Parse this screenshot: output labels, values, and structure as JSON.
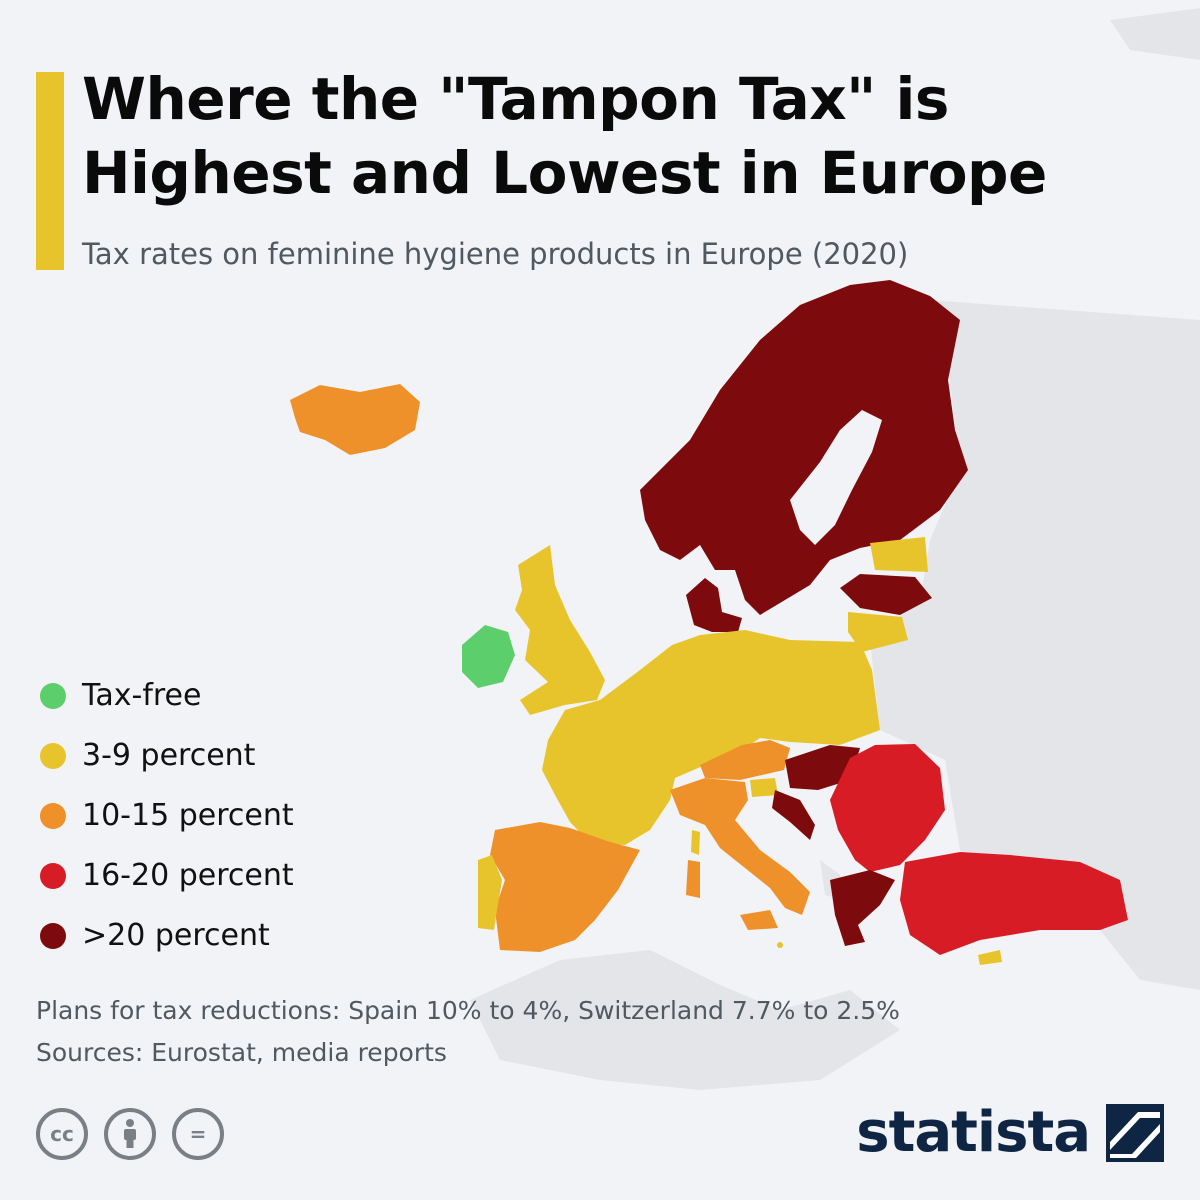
{
  "header": {
    "title_line1": "Where the \"Tampon Tax\" is",
    "title_line2": "Highest and Lowest in Europe",
    "subtitle": "Tax rates on feminine hygiene products in Europe (2020)"
  },
  "colors": {
    "accent": "#e8c42c",
    "tax_free": "#5ccf6c",
    "pct_3_9": "#e8c42c",
    "pct_10_15": "#ee912a",
    "pct_16_20": "#d71c25",
    "pct_over_20": "#7d0a0c",
    "non_data_land": "#e4e5e9",
    "sea": "#f2f3f6",
    "brand": "#0e2643"
  },
  "legend": [
    {
      "label": "Tax-free",
      "color": "#5ccf6c"
    },
    {
      "label": "3-9 percent",
      "color": "#e8c42c"
    },
    {
      "label": "10-15 percent",
      "color": "#ee912a"
    },
    {
      "label": "16-20 percent",
      "color": "#d71c25"
    },
    {
      "label": ">20 percent",
      "color": "#7d0a0c"
    }
  ],
  "map_regions": [
    {
      "region": "Iceland",
      "category": "10-15 percent"
    },
    {
      "region": "Ireland",
      "category": "Tax-free"
    },
    {
      "region": "United Kingdom",
      "category": "3-9 percent"
    },
    {
      "region": "Norway, Sweden, Finland",
      "category": ">20 percent"
    },
    {
      "region": "Denmark",
      "category": ">20 percent"
    },
    {
      "region": "Estonia",
      "category": "3-9 percent"
    },
    {
      "region": "Latvia",
      "category": ">20 percent"
    },
    {
      "region": "Lithuania",
      "category": "3-9 percent"
    },
    {
      "region": "Poland",
      "category": "3-9 percent"
    },
    {
      "region": "Germany, Benelux",
      "category": "3-9 percent"
    },
    {
      "region": "Czechia, Slovakia",
      "category": "3-9 percent"
    },
    {
      "region": "France, Switzerland",
      "category": "3-9 percent"
    },
    {
      "region": "Portugal",
      "category": "3-9 percent"
    },
    {
      "region": "Spain",
      "category": "10-15 percent"
    },
    {
      "region": "Italy",
      "category": "10-15 percent"
    },
    {
      "region": "Austria",
      "category": "10-15 percent"
    },
    {
      "region": "Slovenia",
      "category": "3-9 percent"
    },
    {
      "region": "Hungary",
      "category": ">20 percent"
    },
    {
      "region": "Croatia",
      "category": ">20 percent"
    },
    {
      "region": "Romania",
      "category": "16-20 percent"
    },
    {
      "region": "Bulgaria",
      "category": "16-20 percent"
    },
    {
      "region": "Serbia",
      "category": "16-20 percent"
    },
    {
      "region": "Greece",
      "category": ">20 percent"
    },
    {
      "region": "Turkey",
      "category": "16-20 percent"
    },
    {
      "region": "Cyprus",
      "category": "3-9 percent"
    },
    {
      "region": "Malta",
      "category": "3-9 percent"
    }
  ],
  "notes": {
    "plans": "Plans for tax reductions: Spain 10% to 4%, Switzerland 7.7% to 2.5%",
    "sources": "Sources: Eurostat, media reports"
  },
  "footer": {
    "cc_icon_text": "cc",
    "nd_icon_text": "=",
    "brand": "statista"
  }
}
